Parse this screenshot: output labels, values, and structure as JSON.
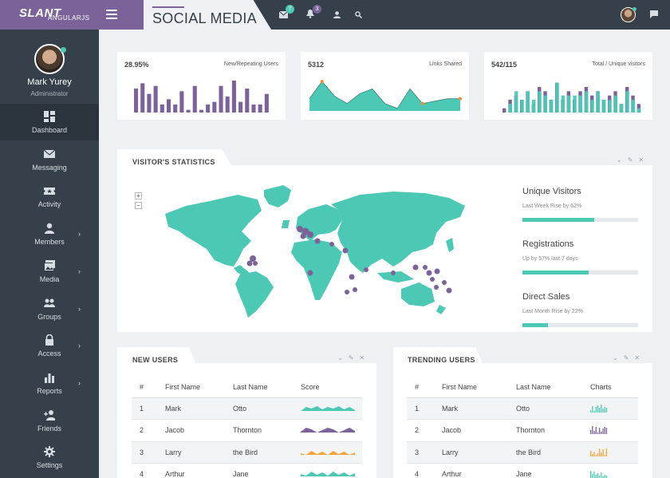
{
  "brand": {
    "logo": "SLANT",
    "sub": "ANGULARJS"
  },
  "header": {
    "title": "SOCIAL MEDIA",
    "messages_badge": "7",
    "notifications_badge": "3",
    "colors": {
      "topbar": "#36404a",
      "brand": "#7b6399",
      "teal": "#4cc9b4"
    }
  },
  "sidebar": {
    "user_name": "Mark Yurey",
    "user_role": "Administrator",
    "items": [
      {
        "label": "Dashboard",
        "icon": "dashboard-icon",
        "chevron": false,
        "active": true
      },
      {
        "label": "Messaging",
        "icon": "mail-icon",
        "chevron": false
      },
      {
        "label": "Activity",
        "icon": "ticket-icon",
        "chevron": false
      },
      {
        "label": "Members",
        "icon": "person-icon",
        "chevron": true
      },
      {
        "label": "Media",
        "icon": "photos-icon",
        "chevron": true
      },
      {
        "label": "Groups",
        "icon": "group-icon",
        "chevron": true
      },
      {
        "label": "Access",
        "icon": "lock-icon",
        "chevron": true
      },
      {
        "label": "Reports",
        "icon": "bar-chart-icon",
        "chevron": true
      },
      {
        "label": "Friends",
        "icon": "add-person-icon",
        "chevron": false
      },
      {
        "label": "Settings",
        "icon": "gear-icon",
        "chevron": false
      }
    ]
  },
  "stats": [
    {
      "value": "28.95%",
      "label": "New/Repeating Users"
    },
    {
      "value": "5312",
      "label": "Links Shared"
    },
    {
      "value": "542/115",
      "label": "Total / Unique visitors"
    }
  ],
  "chart_data": [
    {
      "type": "bar",
      "values": [
        9,
        11,
        7,
        10,
        3,
        5,
        3,
        8,
        1,
        10,
        1,
        3,
        4,
        10,
        6,
        12,
        4,
        9,
        3,
        3,
        7
      ],
      "color": "#7b6399"
    },
    {
      "type": "area",
      "values": [
        5,
        12,
        6,
        3,
        7,
        9,
        3,
        1,
        9,
        3,
        4,
        5,
        5
      ],
      "color": "#4cc9b4",
      "marker_color": "#f58a3c"
    },
    {
      "type": "bar",
      "series": [
        {
          "values": [
            1,
            3,
            4,
            3,
            5,
            2,
            6,
            5,
            3,
            7,
            3,
            5,
            3,
            5,
            6,
            4,
            5,
            3,
            4,
            5,
            2,
            6,
            4,
            2
          ],
          "color": "#7b6399"
        },
        {
          "values": [
            0,
            2,
            5,
            3,
            5,
            3,
            5,
            4,
            3,
            7,
            4,
            4,
            4,
            4,
            5,
            3,
            5,
            3,
            3,
            4,
            2,
            5,
            3,
            1
          ],
          "color": "#4cc9b4"
        }
      ]
    }
  ],
  "visitors": {
    "title": "VISITOR'S STATISTICS",
    "zoom_in": "+",
    "zoom_out": "−",
    "metrics": [
      {
        "title": "Unique Visitors",
        "sub": "Last Week Rise by 62%",
        "value": 0.62
      },
      {
        "title": "Registrations",
        "sub": "Up by 57% last 7 days",
        "value": 0.57
      },
      {
        "title": "Direct Sales",
        "sub": "Last Month Rise by 22%",
        "value": 0.22
      }
    ]
  },
  "new_users": {
    "title": "NEW USERS",
    "columns": [
      "#",
      "First Name",
      "Last Name",
      "Score"
    ],
    "rows": [
      {
        "n": "1",
        "first": "Mark",
        "last": "Otto",
        "color": "#4cc9b4"
      },
      {
        "n": "2",
        "first": "Jacob",
        "last": "Thornton",
        "color": "#7b6399"
      },
      {
        "n": "3",
        "first": "Larry",
        "last": "the Bird",
        "color": "#f5a53c"
      },
      {
        "n": "4",
        "first": "Arthur",
        "last": "Jane",
        "color": "#4cc9b4"
      }
    ]
  },
  "trending_users": {
    "title": "TRENDING USERS",
    "columns": [
      "#",
      "First Name",
      "Last Name",
      "Charts"
    ],
    "rows": [
      {
        "n": "1",
        "first": "Mark",
        "last": "Otto",
        "color": "#4cc9b4"
      },
      {
        "n": "2",
        "first": "Jacob",
        "last": "Thornton",
        "color": "#7b6399"
      },
      {
        "n": "3",
        "first": "Larry",
        "last": "the Bird",
        "color": "#f5a53c"
      },
      {
        "n": "4",
        "first": "Arthur",
        "last": "Jane",
        "color": "#4cc9b4"
      }
    ]
  }
}
